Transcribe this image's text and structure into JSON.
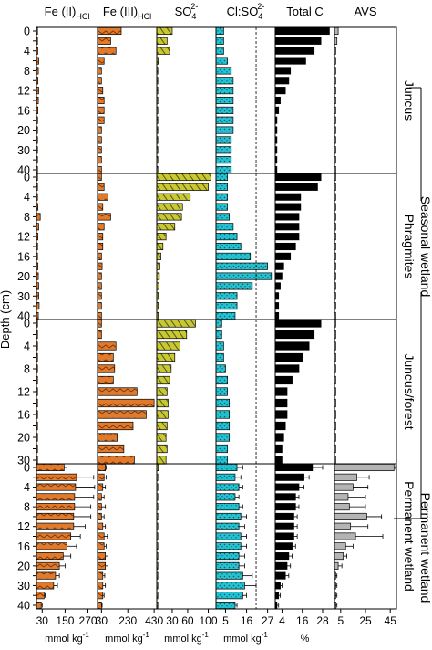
{
  "chart_data": {
    "type": "bar",
    "orientation": "horizontal",
    "y_axis_label": "Depth (cm)",
    "panels": [
      {
        "key": "fe2",
        "title": "Fe (II)",
        "title_sub": "HCl",
        "unit": "mmol kg",
        "unit_sup": "-1",
        "xlim": [
          0,
          320
        ],
        "ticks": [
          30,
          150,
          270
        ],
        "color": "#e07b2e",
        "pattern": "zigzag"
      },
      {
        "key": "fe3",
        "title": "Fe (III)",
        "title_sub": "HCl",
        "unit": "mmol kg",
        "unit_sup": "-1",
        "xlim": [
          0,
          450
        ],
        "ticks": [
          30,
          230,
          430
        ],
        "color": "#e07b2e",
        "pattern": "zigzag"
      },
      {
        "key": "so4",
        "title": "SO",
        "title_sub": "4",
        "title_sup": "2-",
        "unit": "mmol kg",
        "unit_sup": "-1",
        "xlim": [
          0,
          115
        ],
        "ticks": [
          30,
          60,
          100
        ],
        "color": "#c8c832",
        "pattern": "diagonal"
      },
      {
        "key": "clso4",
        "title": "Cl:SO",
        "title_sub": "4",
        "title_sup": "2-",
        "unit": "mmol kg",
        "unit_sup": "-1",
        "xlim": [
          0,
          31
        ],
        "ticks": [
          5,
          16,
          27
        ],
        "color": "#22c4d4",
        "pattern": "dots",
        "reference_line": 21
      },
      {
        "key": "totc",
        "title": "Total C",
        "unit": "%",
        "xlim": [
          0,
          35
        ],
        "ticks": [
          4,
          16,
          28
        ],
        "color": "#000000",
        "pattern": "solid"
      },
      {
        "key": "avs",
        "title": "AVS",
        "unit": "",
        "xlim": [
          0,
          50
        ],
        "ticks": [
          5,
          25,
          45
        ],
        "color": "#b4b4b4",
        "pattern": "solid"
      }
    ],
    "sites": [
      {
        "name": "Juncus",
        "depth_labels": [
          "0",
          "4",
          "8",
          "12",
          "16",
          "20",
          "30",
          "40"
        ],
        "depths": [
          0,
          2,
          4,
          6,
          8,
          10,
          12,
          14,
          16,
          18,
          20,
          25,
          30,
          35,
          40
        ]
      },
      {
        "name": "Phragmites",
        "depth_labels": [
          "0",
          "4",
          "8",
          "12",
          "16",
          "20",
          "30",
          "40"
        ],
        "depths": [
          0,
          2,
          4,
          6,
          8,
          10,
          12,
          14,
          16,
          18,
          20,
          25,
          30,
          35,
          40
        ]
      },
      {
        "name": "Juncus/forest",
        "depth_labels": [
          "0",
          "4",
          "8",
          "12",
          "16",
          "20",
          "30"
        ],
        "depths": [
          0,
          2,
          4,
          6,
          8,
          10,
          12,
          14,
          16,
          18,
          20,
          25,
          30
        ]
      },
      {
        "name": "Permanent wetland",
        "depth_labels": [
          "0",
          "4",
          "8",
          "12",
          "16",
          "20",
          "30",
          "40"
        ],
        "depths": [
          0,
          2,
          4,
          6,
          8,
          10,
          12,
          14,
          16,
          18,
          20,
          25,
          30,
          35,
          40
        ]
      }
    ],
    "values": {
      "fe2": [
        [
          2,
          4,
          7,
          12,
          10,
          8,
          12,
          10,
          8,
          6,
          4,
          4,
          3,
          3,
          3
        ],
        [
          2,
          3,
          4,
          8,
          20,
          12,
          8,
          6,
          5,
          8,
          10,
          12,
          12,
          14,
          10
        ],
        [
          2,
          2,
          2,
          2,
          2,
          2,
          2,
          2,
          2,
          2,
          2,
          2,
          2
        ],
        [
          145,
          210,
          205,
          200,
          200,
          195,
          195,
          180,
          160,
          140,
          120,
          100,
          90,
          40,
          25
        ]
      ],
      "fe3": [
        [
          180,
          100,
          140,
          50,
          30,
          30,
          40,
          50,
          50,
          50,
          30,
          30,
          30,
          30,
          30
        ],
        [
          30,
          50,
          80,
          40,
          100,
          50,
          40,
          40,
          30,
          35,
          30,
          30,
          30,
          30,
          30
        ],
        [
          30,
          30,
          140,
          120,
          130,
          120,
          300,
          430,
          370,
          270,
          150,
          200,
          280
        ],
        [
          60,
          50,
          40,
          30,
          30,
          30,
          40,
          50,
          50,
          60,
          60,
          40,
          40,
          40,
          30
        ]
      ],
      "so4": [
        [
          30,
          20,
          25,
          3,
          2,
          2,
          2,
          2,
          2,
          2,
          2,
          2,
          2,
          2,
          2
        ],
        [
          105,
          100,
          65,
          50,
          48,
          35,
          18,
          12,
          8,
          6,
          5,
          4,
          3,
          3,
          3
        ],
        [
          75,
          58,
          45,
          35,
          28,
          25,
          20,
          22,
          22,
          20,
          18,
          20,
          18
        ],
        [
          3,
          2,
          2,
          2,
          2,
          2,
          2,
          2,
          2,
          2,
          2,
          2,
          2,
          2,
          2
        ]
      ],
      "clso4": [
        [
          4,
          4,
          4,
          6,
          8,
          9,
          9,
          9,
          9,
          9,
          9,
          8,
          8,
          8,
          8
        ],
        [
          6,
          6,
          6,
          6,
          7,
          9,
          11,
          13,
          18,
          27,
          29,
          19,
          11,
          11,
          10
        ],
        [
          3,
          3,
          4,
          4,
          5,
          6,
          6,
          7,
          7,
          7,
          7,
          6,
          6
        ],
        [
          11,
          10,
          12,
          10,
          12,
          13,
          12,
          13,
          13,
          12,
          12,
          14,
          15,
          14,
          10
        ]
      ],
      "totc": [
        [
          32,
          27,
          23,
          18,
          9,
          8,
          6,
          3,
          2,
          1,
          1,
          1,
          1,
          1,
          1
        ],
        [
          27,
          25,
          15,
          15,
          14,
          14,
          14,
          12,
          9,
          5,
          4,
          3,
          2,
          2,
          2
        ],
        [
          27,
          23,
          20,
          16,
          14,
          10,
          7,
          7,
          7,
          6,
          5,
          4,
          4
        ],
        [
          22,
          17,
          14,
          12,
          12,
          11,
          11,
          11,
          10,
          8,
          7,
          6,
          3,
          2,
          1
        ]
      ],
      "avs": [
        [
          3,
          2,
          1,
          1,
          1,
          1,
          1,
          1,
          1,
          1,
          1,
          1,
          1,
          1,
          1
        ],
        [
          1,
          1,
          1,
          1,
          1,
          1,
          1,
          1,
          1,
          1,
          1,
          1,
          1,
          1,
          1
        ],
        [
          1,
          1,
          1,
          1,
          1,
          1,
          1,
          1,
          1,
          1,
          1,
          1,
          1
        ],
        [
          48,
          18,
          15,
          11,
          12,
          26,
          13,
          17,
          9,
          7,
          3,
          1,
          1,
          1,
          1
        ]
      ]
    },
    "error_bars": {
      "panel": 3,
      "site": 3,
      "fe2": [
        15,
        90,
        100,
        100,
        85,
        90,
        60,
        50,
        50,
        40,
        30,
        20,
        20,
        5,
        5
      ],
      "fe3": [
        5,
        15,
        20,
        20,
        30,
        20,
        20,
        25,
        15,
        20,
        20,
        15,
        20,
        10,
        5
      ],
      "clso4": [
        3,
        3,
        2,
        2,
        2,
        3,
        3,
        3,
        3,
        3,
        3,
        5,
        6,
        2,
        1
      ],
      "totc": [
        6,
        3,
        3,
        2,
        2,
        2,
        2,
        2,
        2,
        2,
        2,
        2,
        1,
        1,
        1
      ],
      "avs": [
        3,
        10,
        12,
        14,
        13,
        12,
        14,
        22,
        6,
        3,
        3,
        1,
        1,
        1,
        1
      ]
    },
    "group_labels": [
      {
        "text": "Seasonal wetland",
        "spans_sites": [
          0,
          1,
          2
        ]
      },
      {
        "text": "Permanent wetland",
        "spans_sites": [
          3
        ]
      }
    ],
    "grid": false,
    "legend": "none"
  }
}
